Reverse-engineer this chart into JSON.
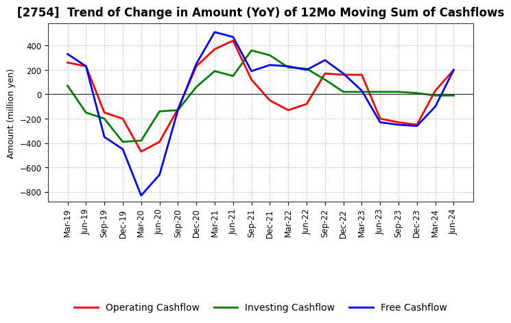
{
  "title": "[2754]  Trend of Change in Amount (YoY) of 12Mo Moving Sum of Cashflows",
  "ylabel": "Amount (million yen)",
  "x_labels": [
    "Mar-19",
    "Jun-19",
    "Sep-19",
    "Dec-19",
    "Mar-20",
    "Jun-20",
    "Sep-20",
    "Dec-20",
    "Mar-21",
    "Jun-21",
    "Sep-21",
    "Dec-21",
    "Mar-22",
    "Jun-22",
    "Sep-22",
    "Dec-22",
    "Mar-23",
    "Jun-23",
    "Sep-23",
    "Dec-23",
    "Mar-24",
    "Jun-24"
  ],
  "operating_cashflow": [
    260,
    230,
    -150,
    -200,
    -470,
    -390,
    -120,
    230,
    370,
    440,
    120,
    -50,
    -130,
    -80,
    170,
    160,
    160,
    -200,
    -230,
    -250,
    30,
    200
  ],
  "investing_cashflow": [
    70,
    -150,
    -200,
    -390,
    -380,
    -140,
    -130,
    60,
    190,
    150,
    360,
    320,
    220,
    210,
    120,
    20,
    20,
    20,
    20,
    10,
    -10,
    -10
  ],
  "free_cashflow": [
    330,
    230,
    -350,
    -450,
    -830,
    -660,
    -130,
    250,
    510,
    470,
    190,
    240,
    230,
    200,
    280,
    170,
    30,
    -230,
    -250,
    -260,
    -100,
    200
  ],
  "operating_color": "#ff0000",
  "investing_color": "#008000",
  "free_color": "#0000ff",
  "ylim": [
    -880,
    580
  ],
  "yticks": [
    -800,
    -600,
    -400,
    -200,
    0,
    200,
    400
  ],
  "background_color": "#ffffff",
  "grid_color": "#aaaaaa",
  "title_fontsize": 12,
  "axis_fontsize": 9,
  "legend_fontsize": 10,
  "tick_fontsize": 8.5,
  "linewidth": 2.0
}
